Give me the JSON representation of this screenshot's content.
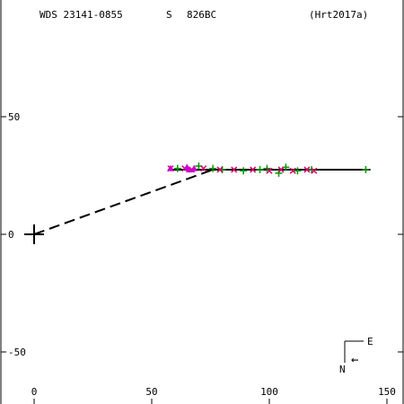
{
  "header": {
    "wds": "WDS 23141-0855",
    "quadrant_flag": "S",
    "year": "826BC",
    "reference": "(Hrt2017a)"
  },
  "orientation": {
    "east": "E",
    "north": "N",
    "arrow": "←"
  },
  "chart_data": {
    "type": "scatter",
    "title": "WDS 23141-0855",
    "xlabel": "",
    "ylabel": "",
    "xlim": [
      -13,
      157
    ],
    "ylim": [
      -72,
      100
    ],
    "grid": false,
    "x_ticks": [
      0,
      50,
      100,
      150
    ],
    "y_ticks": [
      -50,
      0,
      50
    ],
    "x_tick_labels": [
      "0",
      "50",
      "100",
      "150"
    ],
    "y_tick_labels": [
      "-50",
      "0",
      "50"
    ],
    "primary": {
      "x": 0,
      "y": 0
    },
    "orbit_line": {
      "x": [
        57,
        143
      ],
      "y": [
        27.5,
        27.5
      ]
    },
    "vector": {
      "x": [
        0,
        76
      ],
      "y": [
        0,
        27.5
      ]
    },
    "series": [
      {
        "color": "#009900",
        "marker": "+",
        "points": [
          [
            61,
            28
          ],
          [
            70,
            29
          ],
          [
            76,
            28
          ],
          [
            80,
            27.5
          ],
          [
            89,
            27
          ],
          [
            96,
            27.5
          ],
          [
            99,
            28
          ],
          [
            104,
            26
          ],
          [
            107,
            28.5
          ],
          [
            112,
            27
          ],
          [
            118,
            27.5
          ],
          [
            141,
            27.5
          ]
        ]
      },
      {
        "color": "#cc0066",
        "marker": "x",
        "points": [
          [
            58,
            28
          ],
          [
            64,
            28
          ],
          [
            67,
            27.5
          ],
          [
            72,
            28
          ],
          [
            79,
            27.5
          ],
          [
            85,
            27.5
          ],
          [
            93,
            27.5
          ],
          [
            100,
            27
          ],
          [
            105,
            27.5
          ],
          [
            110,
            27
          ],
          [
            116,
            27.5
          ],
          [
            119,
            27
          ]
        ]
      },
      {
        "color": "#cc00cc",
        "marker": "triangle",
        "points": [
          [
            58,
            28
          ],
          [
            65,
            28.5
          ],
          [
            66,
            27.5
          ],
          [
            68,
            28
          ]
        ]
      }
    ]
  }
}
